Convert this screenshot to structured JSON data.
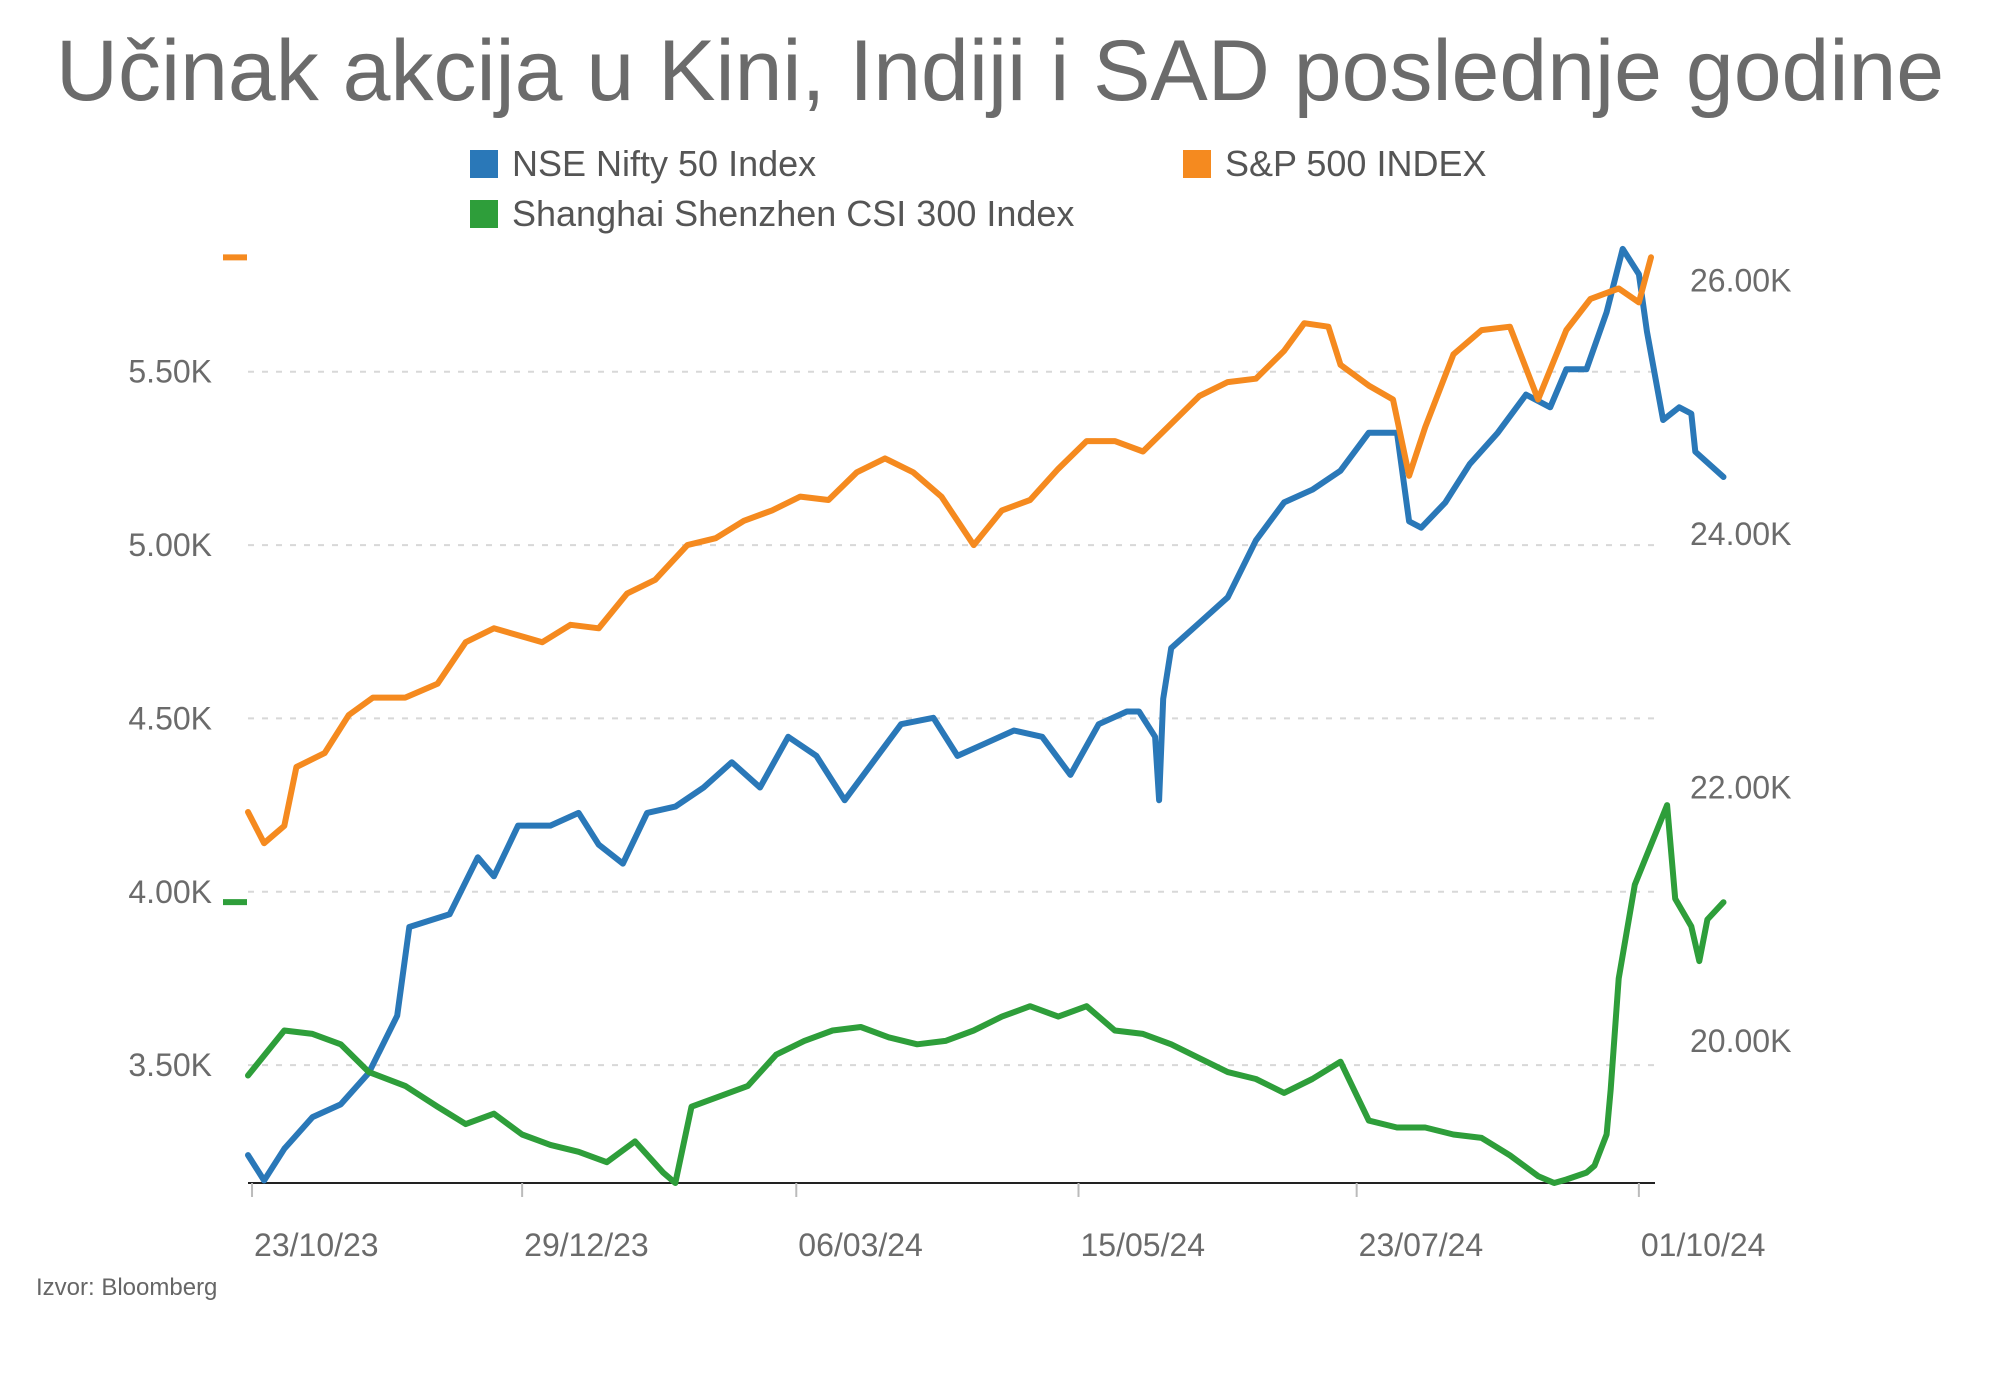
{
  "title": "Učinak akcija u Kini, Indiji i SAD poslednje godine",
  "source": "Izvor: Bloomberg",
  "colors": {
    "nifty": "#2a78b8",
    "sp500": "#f58a1f",
    "csi300": "#2e9e3a",
    "grid": "#d8d8d8",
    "axis": "#222222"
  },
  "chart_data": {
    "type": "line",
    "title": "Učinak akcija u Kini, Indiji i SAD poslednje godine",
    "legend": [
      "NSE Nifty 50 Index",
      "S&P 500 INDEX",
      "Shanghai Shenzhen CSI 300 Index"
    ],
    "x_ticks": [
      "23/10/23",
      "29/12/23",
      "06/03/24",
      "15/05/24",
      "23/07/24",
      "01/10/24"
    ],
    "x_range": [
      "2023-10-22",
      "2024-10-05"
    ],
    "left_axis": {
      "ticks": [
        "3.50K",
        "4.00K",
        "4.50K",
        "5.00K",
        "5.50K"
      ],
      "tick_values": [
        3500,
        4000,
        4500,
        5000,
        5500
      ],
      "range": [
        3160,
        5880
      ],
      "series": [
        "S&P 500 INDEX",
        "Shanghai Shenzhen CSI 300 Index"
      ]
    },
    "right_axis": {
      "ticks": [
        "20.00K",
        "22.00K",
        "24.00K",
        "26.00K"
      ],
      "tick_values": [
        20000,
        22000,
        24000,
        26000
      ],
      "range": [
        18880,
        26320
      ],
      "series": [
        "NSE Nifty 50 Index"
      ]
    },
    "grid": true,
    "series": [
      {
        "name": "NSE Nifty 50 Index",
        "axis": "right",
        "x": [
          "2023-10-22",
          "2023-10-26",
          "2023-10-31",
          "2023-11-07",
          "2023-11-14",
          "2023-11-21",
          "2023-11-28",
          "2023-12-01",
          "2023-12-06",
          "2023-12-11",
          "2023-12-18",
          "2023-12-22",
          "2023-12-28",
          "2024-01-05",
          "2024-01-12",
          "2024-01-17",
          "2024-01-23",
          "2024-01-29",
          "2024-02-05",
          "2024-02-12",
          "2024-02-19",
          "2024-02-26",
          "2024-03-04",
          "2024-03-11",
          "2024-03-18",
          "2024-03-25",
          "2024-04-01",
          "2024-04-09",
          "2024-04-15",
          "2024-04-22",
          "2024-04-29",
          "2024-05-06",
          "2024-05-13",
          "2024-05-20",
          "2024-05-27",
          "2024-05-30",
          "2024-06-03",
          "2024-06-04",
          "2024-06-05",
          "2024-06-07",
          "2024-06-14",
          "2024-06-21",
          "2024-06-28",
          "2024-07-05",
          "2024-07-12",
          "2024-07-19",
          "2024-07-26",
          "2024-08-02",
          "2024-08-05",
          "2024-08-08",
          "2024-08-14",
          "2024-08-20",
          "2024-08-27",
          "2024-09-03",
          "2024-09-09",
          "2024-09-13",
          "2024-09-18",
          "2024-09-23",
          "2024-09-27",
          "2024-10-01",
          "2024-10-03",
          "2024-10-07",
          "2024-10-11",
          "2024-10-14",
          "2024-10-15",
          "2024-10-22"
        ],
        "y": [
          19100,
          18900,
          19150,
          19400,
          19500,
          19750,
          20200,
          20900,
          20950,
          21000,
          21450,
          21300,
          21700,
          21700,
          21800,
          21550,
          21400,
          21800,
          21850,
          22000,
          22200,
          22000,
          22400,
          22250,
          21900,
          22200,
          22500,
          22550,
          22250,
          22350,
          22450,
          22400,
          22100,
          22500,
          22600,
          22600,
          22400,
          21900,
          22700,
          23100,
          23300,
          23500,
          23950,
          24250,
          24350,
          24500,
          24800,
          24800,
          24100,
          24050,
          24250,
          24550,
          24800,
          25100,
          25000,
          25300,
          25300,
          25750,
          26250,
          26050,
          25600,
          24900,
          25000,
          24950,
          24650,
          24450
        ]
      },
      {
        "name": "S&P 500 INDEX",
        "axis": "left",
        "x": [
          "2023-10-22",
          "2023-10-26",
          "2023-10-31",
          "2023-11-03",
          "2023-11-10",
          "2023-11-16",
          "2023-11-22",
          "2023-11-30",
          "2023-12-08",
          "2023-12-15",
          "2023-12-22",
          "2024-01-03",
          "2024-01-10",
          "2024-01-17",
          "2024-01-24",
          "2024-01-31",
          "2024-02-08",
          "2024-02-15",
          "2024-02-22",
          "2024-02-29",
          "2024-03-07",
          "2024-03-14",
          "2024-03-21",
          "2024-03-28",
          "2024-04-04",
          "2024-04-11",
          "2024-04-19",
          "2024-04-26",
          "2024-05-03",
          "2024-05-10",
          "2024-05-17",
          "2024-05-24",
          "2024-05-31",
          "2024-06-07",
          "2024-06-14",
          "2024-06-21",
          "2024-06-28",
          "2024-07-05",
          "2024-07-10",
          "2024-07-16",
          "2024-07-19",
          "2024-07-26",
          "2024-08-01",
          "2024-08-05",
          "2024-08-09",
          "2024-08-16",
          "2024-08-23",
          "2024-08-30",
          "2024-09-06",
          "2024-09-13",
          "2024-09-19",
          "2024-09-26",
          "2024-10-01",
          "2024-10-04"
        ],
        "y": [
          4230,
          4140,
          4190,
          4360,
          4400,
          4510,
          4560,
          4560,
          4600,
          4720,
          4760,
          4720,
          4770,
          4760,
          4860,
          4900,
          5000,
          5020,
          5070,
          5100,
          5140,
          5130,
          5210,
          5250,
          5210,
          5140,
          5000,
          5100,
          5130,
          5220,
          5300,
          5300,
          5270,
          5350,
          5430,
          5470,
          5480,
          5560,
          5640,
          5630,
          5520,
          5460,
          5420,
          5200,
          5340,
          5550,
          5620,
          5630,
          5420,
          5620,
          5710,
          5740,
          5700,
          5830
        ]
      },
      {
        "name": "Shanghai Shenzhen CSI 300 Index",
        "axis": "left",
        "x": [
          "2023-10-22",
          "2023-10-31",
          "2023-11-07",
          "2023-11-14",
          "2023-11-21",
          "2023-11-30",
          "2023-12-08",
          "2023-12-15",
          "2023-12-22",
          "2023-12-29",
          "2024-01-05",
          "2024-01-12",
          "2024-01-19",
          "2024-01-26",
          "2024-02-02",
          "2024-02-05",
          "2024-02-09",
          "2024-02-16",
          "2024-02-23",
          "2024-03-01",
          "2024-03-08",
          "2024-03-15",
          "2024-03-22",
          "2024-03-29",
          "2024-04-05",
          "2024-04-12",
          "2024-04-19",
          "2024-04-26",
          "2024-05-03",
          "2024-05-10",
          "2024-05-17",
          "2024-05-24",
          "2024-05-31",
          "2024-06-07",
          "2024-06-14",
          "2024-06-21",
          "2024-06-28",
          "2024-07-05",
          "2024-07-12",
          "2024-07-19",
          "2024-07-26",
          "2024-08-02",
          "2024-08-09",
          "2024-08-16",
          "2024-08-23",
          "2024-08-30",
          "2024-09-06",
          "2024-09-10",
          "2024-09-13",
          "2024-09-18",
          "2024-09-20",
          "2024-09-23",
          "2024-09-24",
          "2024-09-26",
          "2024-09-30",
          "2024-10-08",
          "2024-10-10",
          "2024-10-14",
          "2024-10-16",
          "2024-10-18",
          "2024-10-22"
        ],
        "y": [
          3470,
          3600,
          3590,
          3560,
          3480,
          3440,
          3380,
          3330,
          3360,
          3300,
          3270,
          3250,
          3220,
          3280,
          3190,
          3160,
          3380,
          3410,
          3440,
          3530,
          3570,
          3600,
          3610,
          3580,
          3560,
          3570,
          3600,
          3640,
          3670,
          3640,
          3670,
          3600,
          3590,
          3560,
          3520,
          3480,
          3460,
          3420,
          3460,
          3510,
          3340,
          3320,
          3320,
          3300,
          3290,
          3240,
          3180,
          3160,
          3170,
          3190,
          3210,
          3300,
          3430,
          3750,
          4020,
          4250,
          3980,
          3900,
          3800,
          3920,
          3970
        ]
      }
    ]
  }
}
